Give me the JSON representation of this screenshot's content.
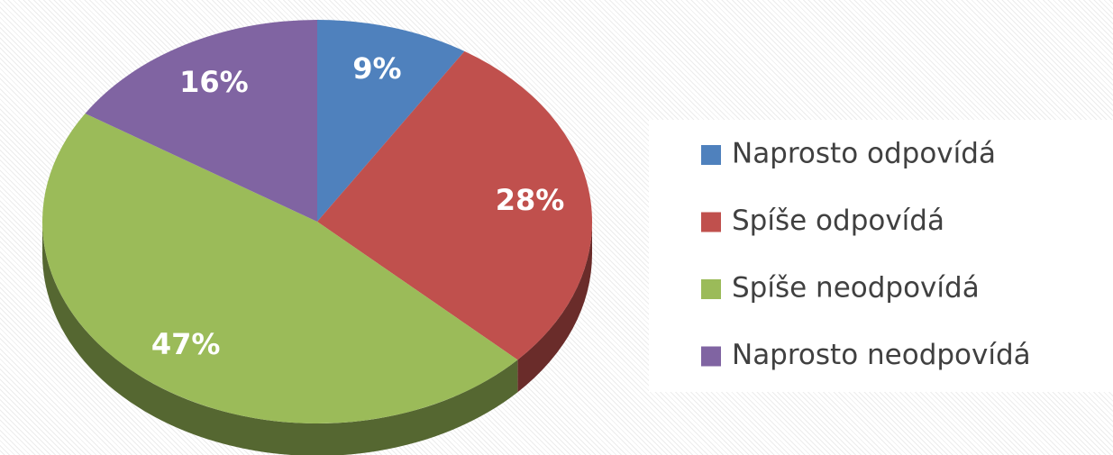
{
  "chart_data": {
    "type": "pie",
    "categories": [
      "Naprosto odpovídá",
      "Spíše odpovídá",
      "Spíše neodpovídá",
      "Naprosto neodpovídá"
    ],
    "values": [
      9,
      28,
      47,
      16
    ],
    "value_labels": [
      "9%",
      "28%",
      "47%",
      "16%"
    ],
    "colors": [
      "#4f81bd",
      "#c0504d",
      "#9bbb59",
      "#8064a2"
    ]
  }
}
